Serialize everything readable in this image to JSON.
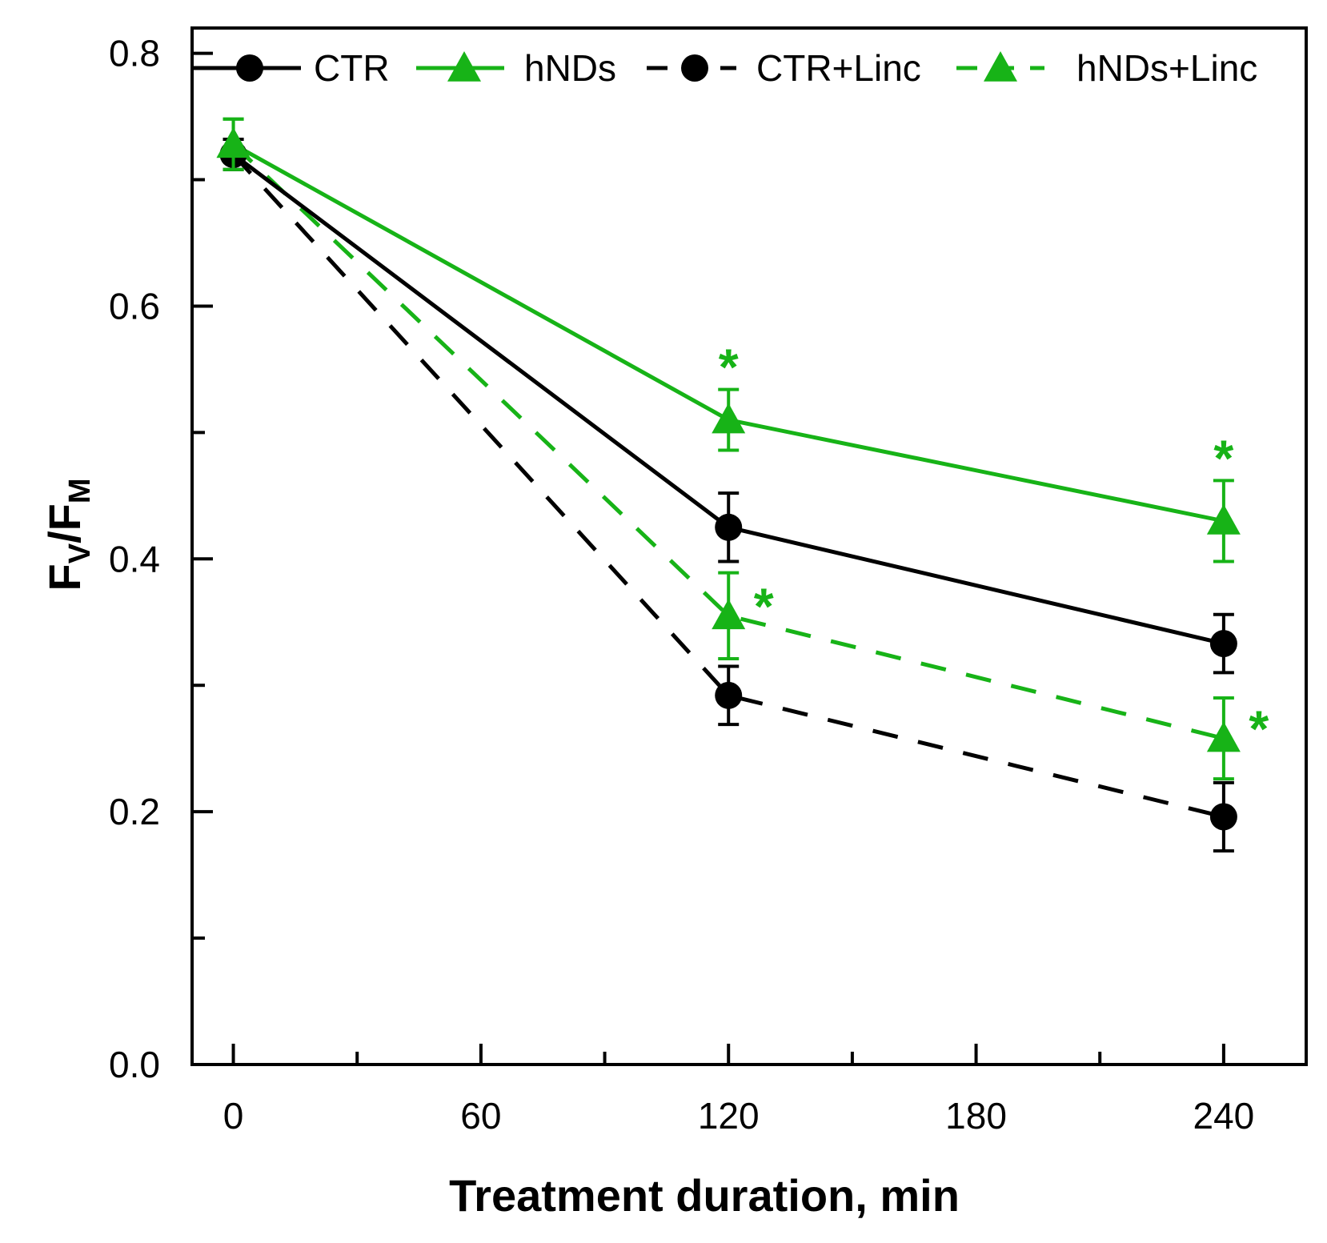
{
  "chart_data": {
    "type": "line",
    "title": "",
    "xlabel": "Treatment duration, min",
    "ylabel_main": "F",
    "ylabel_sub1": "V",
    "ylabel_sep": "/F",
    "ylabel_sub2": "M",
    "xlim": [
      -10,
      260
    ],
    "ylim": [
      0.0,
      0.82
    ],
    "x_ticks": [
      0,
      60,
      120,
      180,
      240
    ],
    "x_tick_labels": [
      "0",
      "60",
      "120",
      "180",
      "240"
    ],
    "x_minor_ticks": [
      30,
      90,
      150,
      210
    ],
    "y_ticks": [
      0.0,
      0.2,
      0.4,
      0.6,
      0.8
    ],
    "y_tick_labels": [
      "0.0",
      "0.2",
      "0.4",
      "0.6",
      "0.8"
    ],
    "y_minor_ticks": [
      0.1,
      0.3,
      0.5,
      0.7
    ],
    "grid": false,
    "legend_position": "top",
    "x": [
      0,
      120,
      240
    ],
    "series": [
      {
        "name": "CTR",
        "color": "#000000",
        "dashed": false,
        "marker": "circle",
        "values": [
          0.72,
          0.425,
          0.333
        ],
        "errors": [
          0.012,
          0.027,
          0.023
        ],
        "stars": [
          false,
          false,
          false
        ]
      },
      {
        "name": "hNDs",
        "color": "#17b317",
        "dashed": false,
        "marker": "triangle",
        "values": [
          0.728,
          0.51,
          0.43
        ],
        "errors": [
          0.02,
          0.024,
          0.032
        ],
        "stars": [
          false,
          true,
          true
        ]
      },
      {
        "name": "CTR+Linc",
        "color": "#000000",
        "dashed": true,
        "marker": "circle",
        "values": [
          0.72,
          0.292,
          0.196
        ],
        "errors": [
          0.012,
          0.023,
          0.027
        ],
        "stars": [
          false,
          false,
          false
        ]
      },
      {
        "name": "hNDs+Linc",
        "color": "#17b317",
        "dashed": true,
        "marker": "triangle",
        "values": [
          0.728,
          0.355,
          0.258
        ],
        "errors": [
          0.02,
          0.034,
          0.032
        ],
        "stars": [
          false,
          true,
          true
        ]
      }
    ],
    "star_symbol": "*"
  }
}
